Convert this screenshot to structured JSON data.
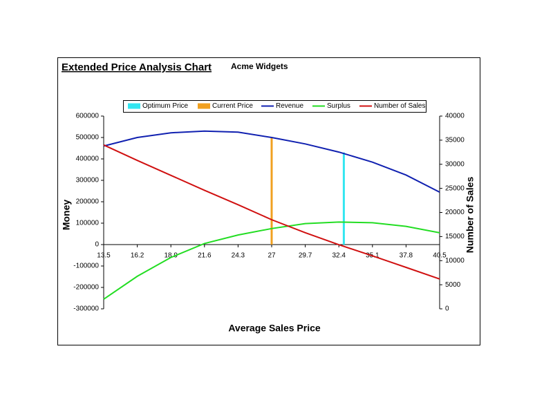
{
  "chart_data": {
    "type": "line",
    "title": "Extended Price Analysis Chart",
    "subtitle": "Acme Widgets",
    "x_label": "Average Sales Price",
    "y_label": "Money",
    "y2_label": "Number of Sales",
    "x": [
      13.5,
      16.2,
      18.9,
      21.6,
      24.3,
      27,
      29.7,
      32.4,
      35.1,
      37.8,
      40.5
    ],
    "xlim": [
      13.5,
      40.5
    ],
    "xticks": [
      13.5,
      16.2,
      18.9,
      21.6,
      24.3,
      27,
      29.7,
      32.4,
      35.1,
      37.8,
      40.5
    ],
    "ylim": [
      -300000,
      600000
    ],
    "yticks": [
      -300000,
      -200000,
      -100000,
      0,
      100000,
      200000,
      300000,
      400000,
      500000,
      600000
    ],
    "y2lim": [
      0,
      40000
    ],
    "y2ticks": [
      0,
      5000,
      10000,
      15000,
      20000,
      25000,
      30000,
      35000,
      40000
    ],
    "legend": "top",
    "series": [
      {
        "name": "Optimum Price",
        "color": "#33e6f0",
        "kind": "vline",
        "x": [
          32.8
        ],
        "values": [
          430000
        ]
      },
      {
        "name": "Current Price",
        "color": "#f0a020",
        "kind": "vline",
        "x": [
          27
        ],
        "values": [
          500000
        ]
      },
      {
        "name": "Revenue",
        "color": "#1020b0",
        "values": [
          460000,
          500000,
          522000,
          530000,
          525000,
          500000,
          470000,
          432000,
          385000,
          325000,
          245000
        ]
      },
      {
        "name": "Surplus",
        "color": "#22dd22",
        "values": [
          -255000,
          -148000,
          -60000,
          5000,
          45000,
          75000,
          98000,
          105000,
          102000,
          85000,
          55000
        ]
      },
      {
        "name": "Number of Sales",
        "color": "#d01010",
        "axis": "y2",
        "values": [
          34000,
          30800,
          27700,
          24600,
          21600,
          18500,
          15800,
          13300,
          11000,
          8600,
          6200
        ]
      }
    ]
  }
}
